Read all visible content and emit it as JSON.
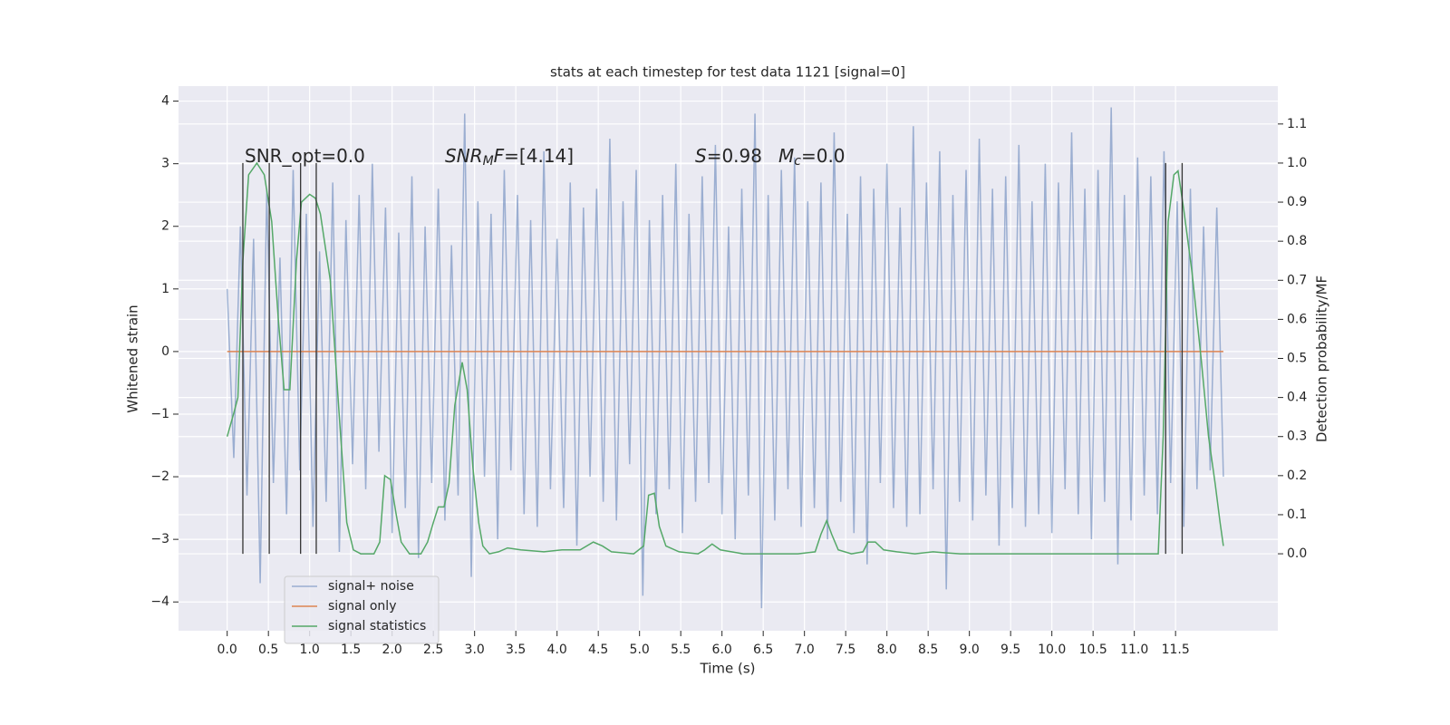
{
  "chart_data": {
    "type": "line",
    "title": "stats at each timestep for test data 1121 [signal=0]",
    "xlabel": "Time (s)",
    "ylabel": "Whitened strain",
    "y2label": "Detection probability/MF",
    "xlim": [
      -0.59,
      12.74
    ],
    "ylim": [
      -4.46,
      4.24
    ],
    "y2lim": [
      -0.197,
      1.197
    ],
    "xticks": [
      {
        "value": 0,
        "label": "0.0"
      },
      0.5,
      {
        "value": 1,
        "label": "1.0"
      },
      1.5,
      {
        "value": 2,
        "label": "2.0"
      },
      2.5,
      {
        "value": 3,
        "label": "3.0"
      },
      3.5,
      {
        "value": 4,
        "label": "4.0"
      },
      4.5,
      {
        "value": 5,
        "label": "5.0"
      },
      5.5,
      {
        "value": 6,
        "label": "6.0"
      },
      6.5,
      {
        "value": 7,
        "label": "7.0"
      },
      7.5,
      {
        "value": 8,
        "label": "8.0"
      },
      8.5,
      {
        "value": 9,
        "label": "9.0"
      },
      9.5,
      {
        "value": 10,
        "label": "10.0"
      },
      10.5,
      {
        "value": 11,
        "label": "11.0"
      },
      11.5
    ],
    "yticks": [
      {
        "value": -4,
        "label": "−4"
      },
      {
        "value": -3,
        "label": "−3"
      },
      {
        "value": -2,
        "label": "−2"
      },
      {
        "value": -1,
        "label": "−1"
      },
      0,
      1,
      2,
      3,
      4
    ],
    "y2ticks": [
      {
        "value": 0,
        "label": "0.0"
      },
      0.1,
      0.2,
      0.3,
      0.4,
      0.5,
      0.6,
      0.7,
      0.8,
      0.9,
      {
        "value": 1,
        "label": "1.0"
      },
      1.1
    ],
    "grid": true,
    "legend": "lower left",
    "series": [
      {
        "name": "signal+ noise",
        "color": "#4c72b0",
        "opacity": 0.5,
        "x": [
          0,
          0.08,
          0.16,
          0.24,
          0.32,
          0.4,
          0.48,
          0.56,
          0.64,
          0.72,
          0.8,
          0.88,
          0.96,
          1.04,
          1.12,
          1.2,
          1.28,
          1.36,
          1.44,
          1.52,
          1.6,
          1.68,
          1.76,
          1.84,
          1.92,
          2,
          2.08,
          2.16,
          2.24,
          2.32,
          2.4,
          2.48,
          2.56,
          2.64,
          2.72,
          2.8,
          2.88,
          2.96,
          3.04,
          3.12,
          3.2,
          3.28,
          3.36,
          3.44,
          3.52,
          3.6,
          3.68,
          3.76,
          3.84,
          3.92,
          4,
          4.08,
          4.16,
          4.24,
          4.32,
          4.4,
          4.48,
          4.56,
          4.64,
          4.72,
          4.8,
          4.88,
          4.96,
          5.04,
          5.12,
          5.2,
          5.28,
          5.36,
          5.44,
          5.52,
          5.6,
          5.68,
          5.76,
          5.84,
          5.92,
          6,
          6.08,
          6.16,
          6.24,
          6.32,
          6.4,
          6.48,
          6.56,
          6.64,
          6.72,
          6.8,
          6.88,
          6.96,
          7.04,
          7.12,
          7.2,
          7.28,
          7.36,
          7.44,
          7.52,
          7.6,
          7.68,
          7.76,
          7.84,
          7.92,
          8,
          8.08,
          8.16,
          8.24,
          8.32,
          8.4,
          8.48,
          8.56,
          8.64,
          8.72,
          8.8,
          8.88,
          8.96,
          9.04,
          9.12,
          9.2,
          9.28,
          9.36,
          9.44,
          9.52,
          9.6,
          9.68,
          9.76,
          9.84,
          9.92,
          10,
          10.08,
          10.16,
          10.24,
          10.32,
          10.4,
          10.48,
          10.56,
          10.64,
          10.72,
          10.8,
          10.88,
          10.96,
          11.04,
          11.12,
          11.2,
          11.28,
          11.36,
          11.44,
          11.52,
          11.6,
          11.68,
          11.76,
          11.84,
          11.92,
          12,
          12.08
        ],
        "values": [
          1.0,
          -1.7,
          2.0,
          -2.3,
          1.8,
          -3.7,
          2.6,
          -2.1,
          1.5,
          -2.6,
          2.9,
          -1.9,
          2.2,
          -2.8,
          1.6,
          -2.4,
          2.7,
          -3.2,
          2.1,
          -1.8,
          2.5,
          -2.2,
          3.0,
          -1.6,
          2.3,
          -2.9,
          1.9,
          -2.5,
          2.8,
          -3.3,
          2.0,
          -2.1,
          2.6,
          -2.7,
          1.7,
          -2.3,
          3.8,
          -3.6,
          2.4,
          -2.0,
          2.2,
          -3.0,
          2.9,
          -1.9,
          2.5,
          -2.6,
          2.1,
          -2.8,
          3.2,
          -2.2,
          1.8,
          -2.5,
          2.7,
          -3.1,
          2.3,
          -2.0,
          2.6,
          -2.4,
          3.4,
          -2.7,
          2.4,
          -1.8,
          2.9,
          -3.9,
          2.1,
          -2.6,
          2.5,
          -2.2,
          3.0,
          -2.9,
          2.2,
          -2.4,
          2.8,
          -2.1,
          3.3,
          -2.6,
          2.0,
          -3.0,
          2.6,
          -2.3,
          3.8,
          -4.1,
          2.5,
          -2.7,
          2.9,
          -2.2,
          3.1,
          -2.8,
          2.4,
          -2.5,
          2.7,
          -3.0,
          3.5,
          -2.4,
          2.2,
          -2.9,
          2.8,
          -3.4,
          2.6,
          -2.1,
          3.0,
          -2.5,
          2.3,
          -2.8,
          3.6,
          -2.6,
          2.7,
          -2.2,
          3.2,
          -3.8,
          2.5,
          -2.4,
          2.9,
          -2.7,
          3.4,
          -2.3,
          2.6,
          -3.1,
          2.8,
          -2.5,
          3.3,
          -2.8,
          2.4,
          -2.6,
          3.0,
          -2.9,
          2.7,
          -2.2,
          3.5,
          -2.6,
          2.6,
          -3.0,
          2.9,
          -2.4,
          3.9,
          -3.4,
          2.5,
          -2.7,
          3.1,
          -2.3,
          2.8,
          -2.6,
          3.2,
          -2.1,
          2.4,
          -2.8,
          2.6,
          -2.2,
          2.0,
          -1.9,
          2.3,
          -2.0
        ]
      },
      {
        "name": "signal only",
        "color": "#dd8452",
        "opacity": 1,
        "x": [
          0,
          12.08
        ],
        "values": [
          0,
          0
        ]
      },
      {
        "name": "signal statistics",
        "color": "#55a868",
        "opacity": 1,
        "axis": "y2",
        "x": [
          0,
          0.08,
          0.13,
          0.19,
          0.26,
          0.36,
          0.45,
          0.54,
          0.62,
          0.69,
          0.76,
          0.84,
          0.9,
          1.0,
          1.07,
          1.13,
          1.25,
          1.36,
          1.45,
          1.53,
          1.62,
          1.78,
          1.85,
          1.91,
          1.98,
          2.05,
          2.11,
          2.21,
          2.35,
          2.43,
          2.5,
          2.56,
          2.63,
          2.69,
          2.76,
          2.85,
          2.91,
          2.98,
          3.05,
          3.1,
          3.18,
          3.29,
          3.4,
          3.56,
          3.84,
          4.06,
          4.28,
          4.44,
          4.55,
          4.66,
          4.93,
          5.05,
          5.11,
          5.18,
          5.24,
          5.32,
          5.48,
          5.71,
          5.79,
          5.88,
          5.98,
          6.26,
          6.92,
          7.13,
          7.2,
          7.27,
          7.33,
          7.41,
          7.57,
          7.71,
          7.77,
          7.86,
          7.96,
          8.12,
          8.34,
          8.56,
          8.67,
          8.89,
          9.33,
          10.43,
          11.29,
          11.35,
          11.41,
          11.48,
          11.53,
          11.6,
          11.7,
          11.81,
          11.9,
          11.98,
          12.04,
          12.08
        ],
        "values": [
          0.3,
          0.36,
          0.4,
          0.75,
          0.97,
          1.0,
          0.97,
          0.85,
          0.6,
          0.42,
          0.42,
          0.75,
          0.9,
          0.92,
          0.91,
          0.87,
          0.7,
          0.35,
          0.08,
          0.01,
          0.0,
          0.0,
          0.03,
          0.2,
          0.19,
          0.1,
          0.03,
          0.0,
          0.0,
          0.03,
          0.08,
          0.12,
          0.12,
          0.18,
          0.38,
          0.49,
          0.42,
          0.22,
          0.08,
          0.02,
          0.0,
          0.005,
          0.015,
          0.01,
          0.005,
          0.01,
          0.01,
          0.03,
          0.02,
          0.005,
          0.0,
          0.02,
          0.15,
          0.155,
          0.07,
          0.02,
          0.005,
          0.0,
          0.01,
          0.025,
          0.01,
          0.0,
          0.0,
          0.005,
          0.05,
          0.085,
          0.05,
          0.01,
          0.0,
          0.005,
          0.03,
          0.03,
          0.01,
          0.005,
          0.0,
          0.005,
          0.003,
          0.0,
          0.0,
          0.0,
          0.0,
          0.3,
          0.85,
          0.97,
          0.98,
          0.88,
          0.72,
          0.5,
          0.3,
          0.18,
          0.08,
          0.02
        ]
      }
    ],
    "vlines": {
      "x": [
        0.19,
        0.51,
        0.89,
        1.08,
        11.38,
        11.58
      ],
      "ymin": 0,
      "ymax": 1,
      "axis": "y2",
      "color": "#333333"
    },
    "annotations": [
      {
        "parts": [
          {
            "text": "SNR_opt=0.0"
          }
        ]
      },
      {
        "parts": [
          {
            "text": "SNR",
            "italic": true
          },
          {
            "text": "M",
            "italic": true,
            "sub": true
          },
          {
            "text": "F",
            "italic": true
          },
          {
            "text": "=[4.14]"
          }
        ]
      },
      {
        "parts": [
          {
            "text": "S",
            "italic": true
          },
          {
            "text": "=0.98"
          }
        ]
      },
      {
        "parts": [
          {
            "text": "M",
            "italic": true
          },
          {
            "text": "c",
            "italic": true,
            "sub": true
          },
          {
            "text": "=0.0"
          }
        ]
      }
    ]
  }
}
